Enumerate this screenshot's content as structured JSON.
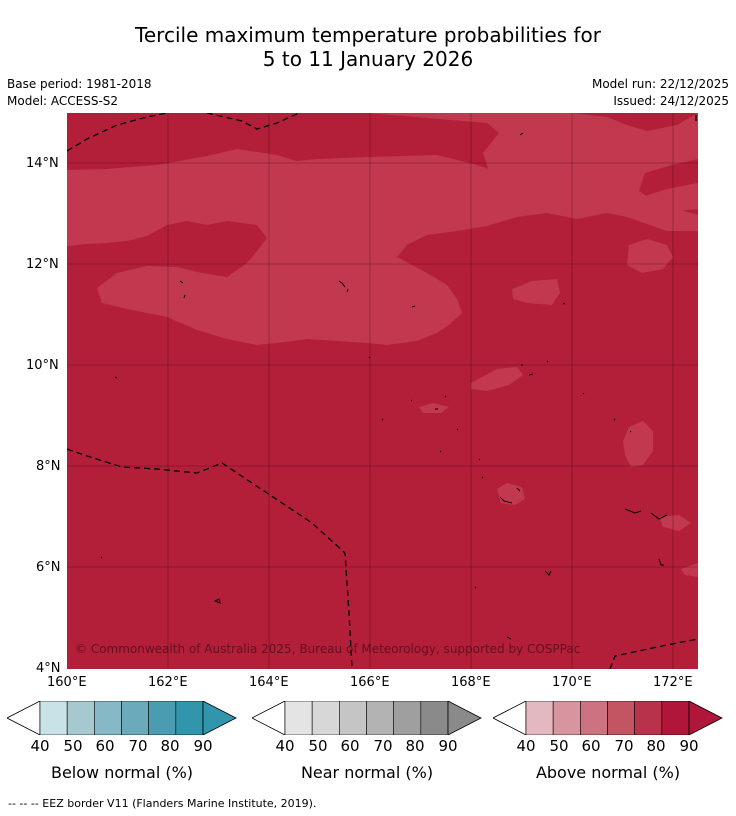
{
  "title": {
    "line1": "Tercile maximum temperature probabilities for",
    "line2": "5 to 11 January 2026"
  },
  "meta": {
    "base_period": "Base period: 1981-2018",
    "model": "Model: ACCESS-S2",
    "model_run": "Model run: 22/12/2025",
    "issued": "Issued: 24/12/2025"
  },
  "map": {
    "lat_labels": [
      "14°N",
      "12°N",
      "10°N",
      "8°N",
      "6°N",
      "4°N"
    ],
    "lon_labels": [
      "160°E",
      "162°E",
      "164°E",
      "166°E",
      "168°E",
      "170°E",
      "172°E"
    ],
    "copyright": "© Commonwealth of Australia 2025, Bureau of Meteorology, supported by COSPPac",
    "colors": {
      "above_80": "#b31e38",
      "above_70": "#c2394f"
    }
  },
  "colorbars": [
    {
      "label": "Below normal (%)",
      "ticks": [
        "40",
        "50",
        "60",
        "70",
        "80",
        "90"
      ],
      "colors": [
        "#c8e2e8",
        "#a6c8cf",
        "#86b8c6",
        "#6aaabb",
        "#4a9cb0",
        "#3196ab"
      ]
    },
    {
      "label": "Near normal (%)",
      "ticks": [
        "40",
        "50",
        "60",
        "70",
        "80",
        "90"
      ],
      "colors": [
        "#e4e4e4",
        "#d7d7d7",
        "#c5c5c5",
        "#b3b3b3",
        "#9f9f9f",
        "#8a8a8a"
      ]
    },
    {
      "label": "Above normal (%)",
      "ticks": [
        "40",
        "50",
        "60",
        "70",
        "80",
        "90"
      ],
      "colors": [
        "#e3b8be",
        "#d7959f",
        "#cd7280",
        "#c35563",
        "#b8324b",
        "#b0163a"
      ]
    }
  ],
  "footer": "--  --  -- EEZ border V11 (Flanders Marine Institute, 2019)."
}
